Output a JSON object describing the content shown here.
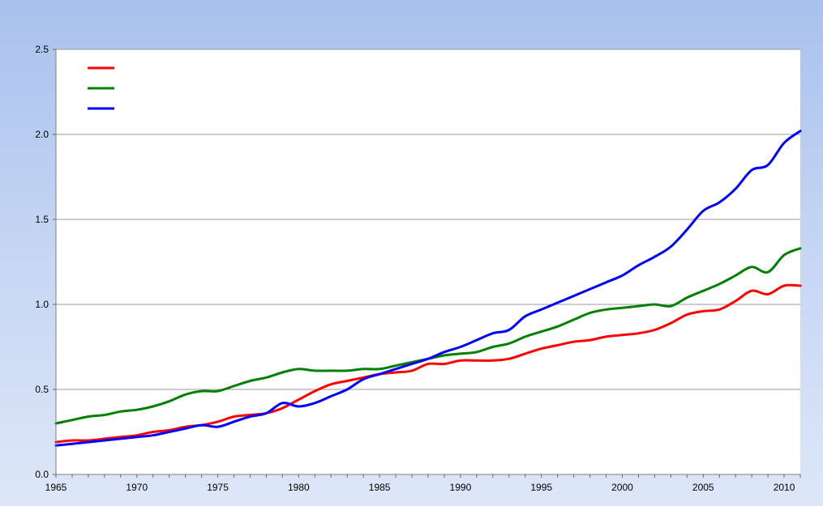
{
  "chart_data": {
    "type": "line",
    "title": "",
    "xlabel": "",
    "ylabel": "",
    "xlim": [
      1965,
      2011
    ],
    "ylim": [
      0,
      2.5
    ],
    "x_ticks": [
      "1965",
      "1970",
      "1975",
      "1980",
      "1985",
      "1990",
      "1995",
      "2000",
      "2005",
      "2010"
    ],
    "y_ticks": [
      "0.0",
      "0.5",
      "1.0",
      "1.5",
      "2.0",
      "2.5"
    ],
    "grid": "horizontal",
    "legend_position": "top-left",
    "x": [
      1965,
      1966,
      1967,
      1968,
      1969,
      1970,
      1971,
      1972,
      1973,
      1974,
      1975,
      1976,
      1977,
      1978,
      1979,
      1980,
      1981,
      1982,
      1983,
      1984,
      1985,
      1986,
      1987,
      1988,
      1989,
      1990,
      1991,
      1992,
      1993,
      1994,
      1995,
      1996,
      1997,
      1998,
      1999,
      2000,
      2001,
      2002,
      2003,
      2004,
      2005,
      2006,
      2007,
      2008,
      2009,
      2010,
      2011
    ],
    "series": [
      {
        "color": "#ff0000",
        "values": [
          0.19,
          0.2,
          0.2,
          0.21,
          0.22,
          0.23,
          0.25,
          0.26,
          0.28,
          0.29,
          0.31,
          0.34,
          0.35,
          0.36,
          0.39,
          0.44,
          0.49,
          0.53,
          0.55,
          0.57,
          0.59,
          0.6,
          0.61,
          0.65,
          0.65,
          0.67,
          0.67,
          0.67,
          0.68,
          0.71,
          0.74,
          0.76,
          0.78,
          0.79,
          0.81,
          0.82,
          0.83,
          0.85,
          0.89,
          0.94,
          0.96,
          0.97,
          1.02,
          1.08,
          1.06,
          1.11,
          1.11
        ]
      },
      {
        "color": "#008000",
        "values": [
          0.3,
          0.32,
          0.34,
          0.35,
          0.37,
          0.38,
          0.4,
          0.43,
          0.47,
          0.49,
          0.49,
          0.52,
          0.55,
          0.57,
          0.6,
          0.62,
          0.61,
          0.61,
          0.61,
          0.62,
          0.62,
          0.64,
          0.66,
          0.68,
          0.7,
          0.71,
          0.72,
          0.75,
          0.77,
          0.81,
          0.84,
          0.87,
          0.91,
          0.95,
          0.97,
          0.98,
          0.99,
          1.0,
          0.99,
          1.04,
          1.08,
          1.12,
          1.17,
          1.22,
          1.19,
          1.29,
          1.33
        ]
      },
      {
        "color": "#0000ff",
        "values": [
          0.17,
          0.18,
          0.19,
          0.2,
          0.21,
          0.22,
          0.23,
          0.25,
          0.27,
          0.29,
          0.28,
          0.31,
          0.34,
          0.36,
          0.42,
          0.4,
          0.42,
          0.46,
          0.5,
          0.56,
          0.59,
          0.62,
          0.65,
          0.68,
          0.72,
          0.75,
          0.79,
          0.83,
          0.85,
          0.93,
          0.97,
          1.01,
          1.05,
          1.09,
          1.13,
          1.17,
          1.23,
          1.28,
          1.34,
          1.44,
          1.55,
          1.6,
          1.68,
          1.79,
          1.82,
          1.95,
          2.02
        ]
      }
    ]
  }
}
